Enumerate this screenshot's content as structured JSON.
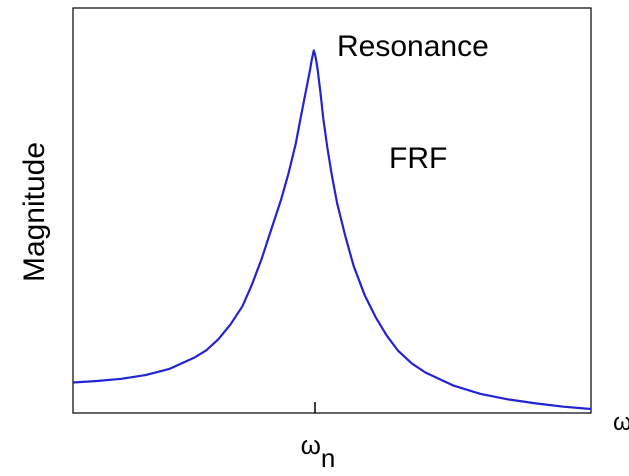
{
  "chart_data": {
    "type": "line",
    "ylabel": "Magnitude",
    "xlabel": "ω",
    "xticks": [
      {
        "value": 0,
        "label_main": "ω",
        "label_sub": "n"
      }
    ],
    "annotations": [
      "Resonance",
      "FRF"
    ],
    "xlim": [
      -1,
      1
    ],
    "ylim": [
      0,
      1
    ],
    "grid": false,
    "legend": "none",
    "series": [
      {
        "color": "#2323d6",
        "x": [
          -1.0,
          -0.9,
          -0.8,
          -0.7,
          -0.6,
          -0.5,
          -0.45,
          -0.4,
          -0.35,
          -0.3,
          -0.26,
          -0.22,
          -0.18,
          -0.14,
          -0.11,
          -0.08,
          -0.06,
          -0.045,
          -0.03,
          -0.02,
          -0.015,
          -0.01,
          -0.005,
          0.0,
          0.005,
          0.01,
          0.015,
          0.02,
          0.03,
          0.045,
          0.06,
          0.08,
          0.11,
          0.14,
          0.18,
          0.22,
          0.26,
          0.3,
          0.35,
          0.4,
          0.5,
          0.6,
          0.7,
          0.8,
          0.9,
          1.0
        ],
        "y": [
          0.083,
          0.087,
          0.093,
          0.103,
          0.12,
          0.15,
          0.17,
          0.2,
          0.24,
          0.29,
          0.35,
          0.42,
          0.5,
          0.58,
          0.65,
          0.73,
          0.8,
          0.85,
          0.9,
          0.935,
          0.955,
          0.97,
          0.985,
          0.975,
          0.955,
          0.93,
          0.9,
          0.87,
          0.8,
          0.72,
          0.65,
          0.57,
          0.48,
          0.4,
          0.32,
          0.26,
          0.21,
          0.17,
          0.135,
          0.11,
          0.075,
          0.052,
          0.037,
          0.026,
          0.017,
          0.011
        ]
      }
    ]
  }
}
